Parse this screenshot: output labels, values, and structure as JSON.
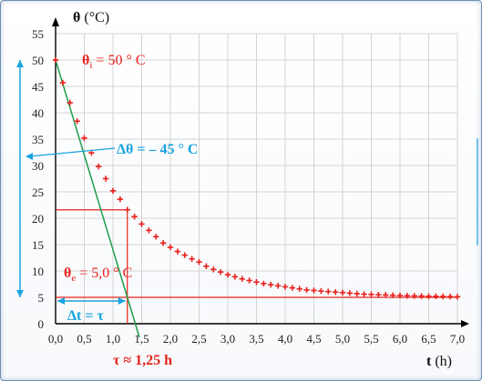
{
  "chart_data": {
    "type": "scatter",
    "ylabel": {
      "symbol": "θ",
      "unit": " (°C)"
    },
    "xlabel": {
      "symbol": "t",
      "unit": " (h)"
    },
    "xlim": [
      0,
      7
    ],
    "ylim": [
      0,
      55
    ],
    "x_ticks": [
      "0,0",
      "0,5",
      "1,0",
      "1,5",
      "2,0",
      "2,5",
      "3,0",
      "3,5",
      "4,0",
      "4,5",
      "5,0",
      "5,5",
      "6,0",
      "6,5",
      "7,0"
    ],
    "y_ticks": [
      "0",
      "5",
      "10",
      "15",
      "20",
      "25",
      "30",
      "35",
      "40",
      "45",
      "50",
      "55"
    ],
    "grid": true,
    "series": [
      {
        "marker": "+",
        "color": "#e8211c",
        "x": [
          0,
          0.125,
          0.25,
          0.375,
          0.5,
          0.625,
          0.75,
          0.875,
          1.0,
          1.125,
          1.25,
          1.375,
          1.5,
          1.625,
          1.75,
          1.875,
          2.0,
          2.125,
          2.25,
          2.375,
          2.5,
          2.625,
          2.75,
          2.875,
          3.0,
          3.125,
          3.25,
          3.375,
          3.5,
          3.625,
          3.75,
          3.875,
          4.0,
          4.125,
          4.25,
          4.375,
          4.5,
          4.625,
          4.75,
          4.875,
          5.0,
          5.125,
          5.25,
          5.375,
          5.5,
          5.625,
          5.75,
          5.875,
          6.0,
          6.125,
          6.25,
          6.375,
          6.5,
          6.625,
          6.75,
          6.875,
          7.0
        ],
        "values": [
          50,
          45.7,
          41.9,
          38.4,
          35.2,
          32.4,
          29.8,
          27.5,
          25.2,
          23.6,
          21.6,
          20.3,
          18.9,
          17.7,
          16.5,
          15.3,
          14.5,
          13.7,
          13.0,
          12.3,
          11.7,
          10.9,
          10.3,
          9.8,
          9.3,
          8.9,
          8.5,
          8.2,
          7.9,
          7.6,
          7.4,
          7.2,
          7.0,
          6.8,
          6.6,
          6.4,
          6.3,
          6.2,
          6.1,
          6.0,
          5.9,
          5.8,
          5.7,
          5.6,
          5.55,
          5.5,
          5.45,
          5.4,
          5.35,
          5.3,
          5.28,
          5.25,
          5.22,
          5.2,
          5.18,
          5.15,
          5.1
        ]
      }
    ],
    "tangent": {
      "color": "#1e9e4a",
      "x0": 0,
      "y0": 50,
      "slope": -36
    },
    "annotations": {
      "theta_i": {
        "symbol": "θ",
        "sub": "i",
        "text": " = 50 ° C"
      },
      "delta_theta": {
        "text": "Δθ = – 45 ° C"
      },
      "theta_e": {
        "symbol": "θ",
        "sub": "e",
        "text": " = 5,0 ° C"
      },
      "delta_t": {
        "text": "Δt = τ"
      },
      "tau": {
        "text": "τ ≈ 1,25 h"
      }
    },
    "colors": {
      "red": "#e8211c",
      "blue": "#19a3df",
      "green": "#1e9e4a"
    }
  }
}
